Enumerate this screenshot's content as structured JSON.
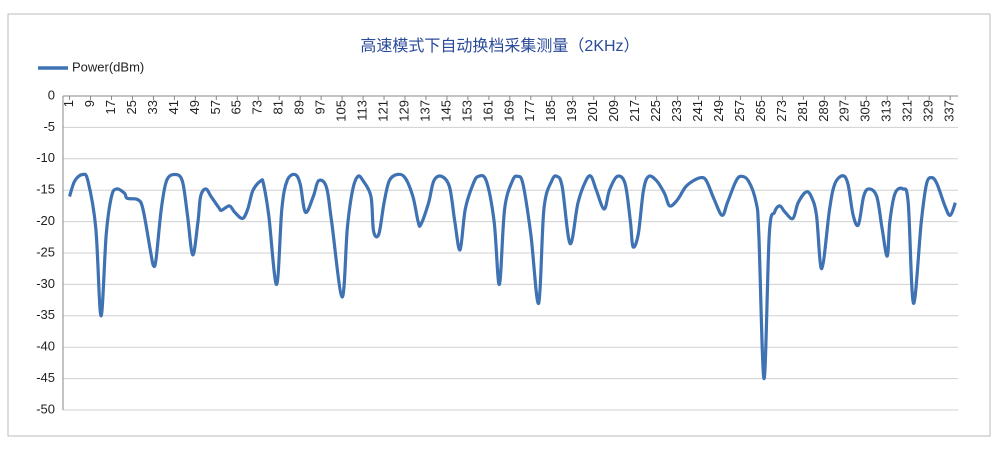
{
  "chart_data": {
    "type": "line",
    "title": "高速模式下自动换档采集测量（2KHz）",
    "x": [
      1,
      3,
      6,
      8,
      11,
      13,
      15,
      17,
      19,
      22,
      23,
      27,
      29,
      32,
      33,
      34,
      36,
      38,
      41,
      44,
      46,
      48,
      50,
      51,
      53,
      55,
      58,
      59,
      62,
      64,
      67,
      69,
      71,
      74,
      75,
      77,
      80,
      82,
      84,
      87,
      89,
      91,
      94,
      96,
      99,
      101,
      105,
      107,
      109,
      111,
      113,
      116,
      117,
      119,
      121,
      123,
      126,
      129,
      132,
      134,
      135,
      138,
      140,
      143,
      146,
      148,
      150,
      152,
      155,
      157,
      160,
      163,
      165,
      167,
      170,
      172,
      174,
      177,
      180,
      182,
      185,
      187,
      189,
      192,
      195,
      198,
      200,
      202,
      205,
      207,
      210,
      213,
      215,
      216,
      218,
      220,
      222,
      225,
      228,
      230,
      233,
      236,
      239,
      242,
      244,
      247,
      250,
      252,
      255,
      257,
      260,
      263,
      264,
      266,
      268,
      270,
      272,
      274,
      277,
      279,
      282,
      284,
      286,
      288,
      291,
      293,
      296,
      298,
      300,
      302,
      304,
      306,
      309,
      311,
      313,
      314,
      316,
      319,
      321,
      323,
      326,
      328,
      330,
      332,
      335,
      337,
      339
    ],
    "series": [
      {
        "name": "Power(dBm)",
        "color": "#3f72b2",
        "values": [
          -16,
          -13.5,
          -12.5,
          -13.5,
          -21,
          -35,
          -22,
          -16,
          -14.8,
          -15.5,
          -16.3,
          -16.5,
          -18,
          -25,
          -27,
          -26,
          -18,
          -13.5,
          -12.5,
          -13.5,
          -19,
          -25.3,
          -20,
          -16,
          -14.8,
          -16,
          -17.8,
          -18.2,
          -17.5,
          -18.5,
          -19.5,
          -18,
          -15,
          -13.5,
          -14,
          -19,
          -30,
          -18,
          -13.5,
          -12.5,
          -14,
          -18.5,
          -16,
          -13.5,
          -14.5,
          -20,
          -32,
          -21,
          -15,
          -12.8,
          -13.5,
          -16,
          -21.5,
          -22,
          -17,
          -13.5,
          -12.5,
          -13,
          -16,
          -20,
          -20.5,
          -17,
          -13.5,
          -12.8,
          -14.5,
          -20,
          -24.5,
          -18,
          -14,
          -12.8,
          -13.5,
          -20,
          -30,
          -18,
          -13.5,
          -12.8,
          -14,
          -22,
          -33,
          -18,
          -13.5,
          -12.8,
          -14.5,
          -23.5,
          -17,
          -13.5,
          -12.8,
          -15,
          -18,
          -15,
          -12.8,
          -14,
          -20,
          -24,
          -22,
          -15,
          -12.8,
          -13.5,
          -15.5,
          -17.5,
          -16.5,
          -14.5,
          -13.5,
          -13,
          -13.5,
          -16.5,
          -19,
          -17,
          -13.8,
          -12.8,
          -13.5,
          -17,
          -22,
          -45,
          -22,
          -18.5,
          -17.5,
          -18.5,
          -19.5,
          -17,
          -15.3,
          -16,
          -19,
          -27.5,
          -18,
          -14,
          -12.7,
          -14,
          -19,
          -20.5,
          -16,
          -14.8,
          -16,
          -21,
          -25.5,
          -20,
          -15.5,
          -14.8,
          -17,
          -33,
          -20,
          -14,
          -13,
          -14,
          -17.5,
          -19,
          -17
        ]
      }
    ],
    "xlim": [
      -1.5,
      340
    ],
    "xticks": [
      1,
      9,
      17,
      25,
      33,
      41,
      49,
      57,
      65,
      73,
      81,
      89,
      97,
      105,
      113,
      121,
      129,
      137,
      145,
      153,
      161,
      169,
      177,
      185,
      193,
      201,
      209,
      217,
      225,
      233,
      241,
      249,
      257,
      265,
      273,
      281,
      289,
      297,
      305,
      313,
      321,
      329,
      337
    ],
    "ylim": [
      -50,
      0
    ],
    "yticks": [
      0,
      -5,
      -10,
      -15,
      -20,
      -25,
      -30,
      -35,
      -40,
      -45,
      -50
    ],
    "grid": true,
    "legend": "top-left"
  }
}
